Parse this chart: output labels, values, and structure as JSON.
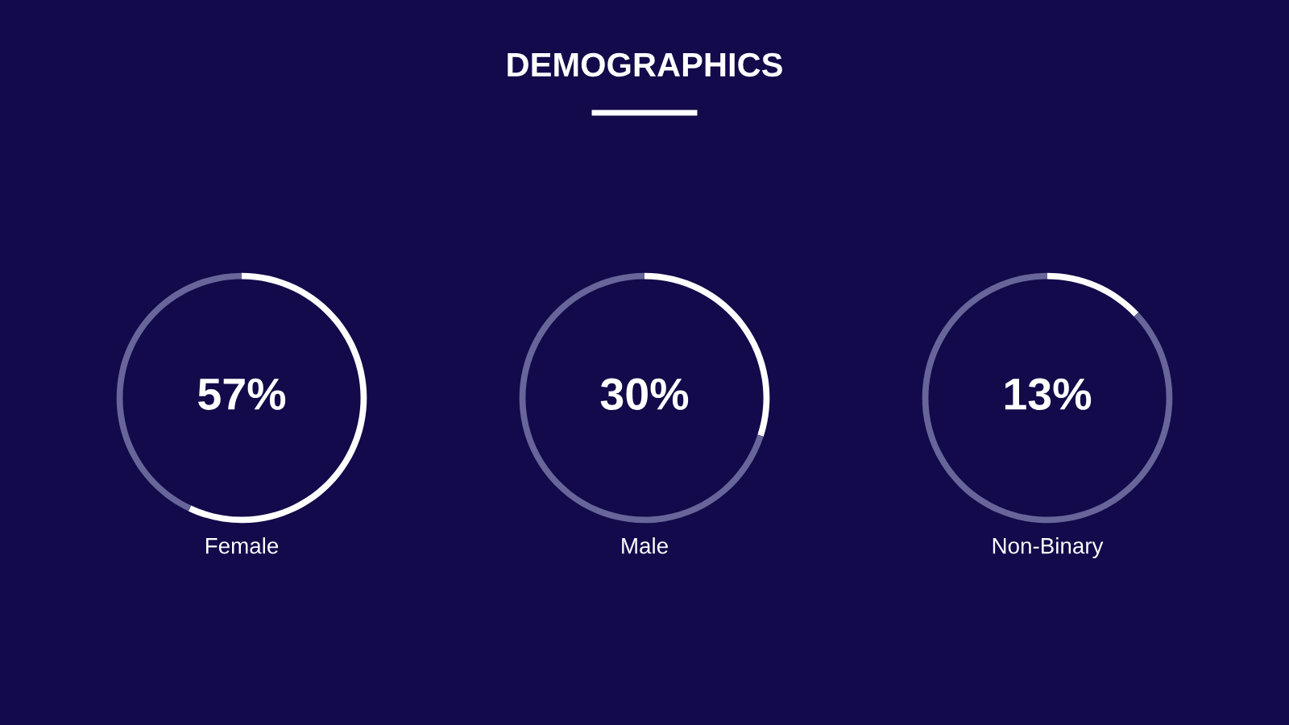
{
  "chart_data": [
    {
      "type": "other",
      "title": "DEMOGRAPHICS"
    },
    {
      "type": "donut",
      "categories": [
        null,
        null
      ],
      "values": [
        57,
        43
      ],
      "colors": [
        "#ffffff",
        "#67659a"
      ],
      "value_labels": [
        "57%",
        null
      ],
      "xlabel": "Female"
    },
    {
      "type": "donut",
      "categories": [
        null,
        null
      ],
      "values": [
        30,
        70
      ],
      "colors": [
        "#ffffff",
        "#67659a"
      ],
      "value_labels": [
        "30%",
        null
      ],
      "xlabel": "Male"
    },
    {
      "type": "donut",
      "categories": [
        null,
        null
      ],
      "values": [
        13,
        87
      ],
      "colors": [
        "#ffffff",
        "#67659a"
      ],
      "value_labels": [
        "13%",
        null
      ],
      "xlabel": "Non-Binary"
    }
  ]
}
